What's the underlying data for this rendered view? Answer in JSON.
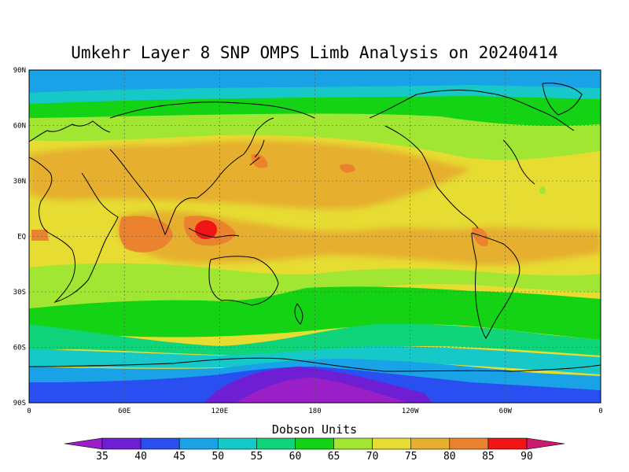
{
  "title": "Umkehr Layer 8 SNP OMPS Limb Analysis on 20240414",
  "colorbar_title": "Dobson Units",
  "lat_ticks": [
    "90N",
    "60N",
    "30N",
    "EQ",
    "30S",
    "60S",
    "90S"
  ],
  "lon_ticks": [
    "0",
    "60E",
    "120E",
    "180",
    "120W",
    "60W",
    "0"
  ],
  "colorbar": {
    "labels": [
      "35",
      "40",
      "45",
      "50",
      "55",
      "60",
      "65",
      "70",
      "75",
      "80",
      "85",
      "90"
    ],
    "colors": [
      "#9b1fc7",
      "#6e1fd4",
      "#2a4ff0",
      "#1aa2e6",
      "#16c8c8",
      "#10d47a",
      "#14d214",
      "#a0e632",
      "#e6dc32",
      "#e6af2d",
      "#eb822d",
      "#f01414",
      "#cc1a6e"
    ]
  },
  "map_background": "#e6dc32"
}
